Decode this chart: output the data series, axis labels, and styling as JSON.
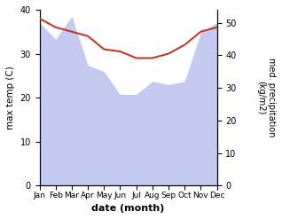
{
  "months": [
    "Jan",
    "Feb",
    "Mar",
    "Apr",
    "May",
    "Jun",
    "Jul",
    "Aug",
    "Sep",
    "Oct",
    "Nov",
    "Dec"
  ],
  "temperature": [
    38,
    36,
    35,
    34,
    31,
    30.5,
    29,
    29,
    30,
    32,
    35,
    36
  ],
  "precipitation": [
    50,
    45,
    52,
    37,
    35,
    28,
    28,
    32,
    31,
    32,
    47,
    50
  ],
  "temp_color": "#c0392b",
  "precip_fill_color": "#c5caf0",
  "temp_ylim": [
    0,
    40
  ],
  "precip_ylim": [
    0,
    54
  ],
  "temp_yticks": [
    0,
    10,
    20,
    30,
    40
  ],
  "precip_yticks": [
    0,
    10,
    20,
    30,
    40,
    50
  ],
  "xlabel": "date (month)",
  "ylabel_left": "max temp (C)",
  "ylabel_right": "med. precipitation\n(kg/m2)",
  "title": ""
}
